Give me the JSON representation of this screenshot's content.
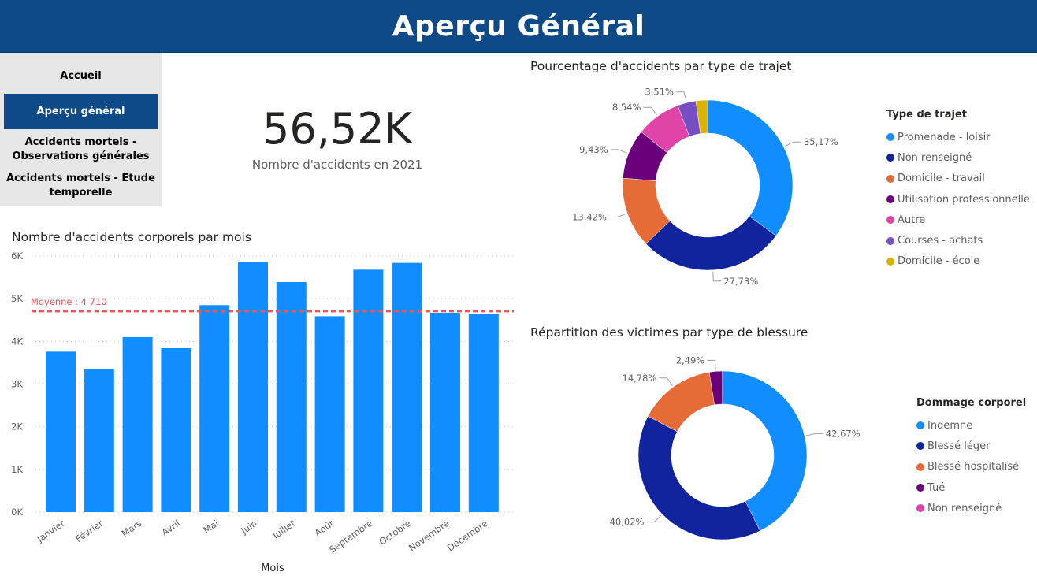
{
  "header": {
    "title": "Aperçu Général"
  },
  "nav": {
    "items": [
      {
        "label": "Accueil"
      },
      {
        "label": "Aperçu général"
      },
      {
        "label": "Accidents mortels - Observations générales"
      },
      {
        "label": "Accidents mortels - Etude temporelle"
      }
    ]
  },
  "kpi": {
    "value": "56,52K",
    "label": "Nombre d'accidents en 2021"
  },
  "colors": {
    "bar": "#118dff",
    "average_line": "#e8575a",
    "header": "#0d4a87"
  },
  "chart_data": [
    {
      "type": "bar",
      "title": "Nombre d'accidents corporels par mois",
      "xlabel": "Mois",
      "ylabel": "",
      "categories": [
        "Janvier",
        "Février",
        "Mars",
        "Avril",
        "Mai",
        "Juin",
        "Juillet",
        "Août",
        "Septembre",
        "Octobre",
        "Novembre",
        "Décembre"
      ],
      "values": [
        3760,
        3350,
        4100,
        3840,
        4850,
        5870,
        5390,
        4590,
        5680,
        5840,
        4670,
        4650
      ],
      "ylim": [
        0,
        6000
      ],
      "yticks": [
        "0K",
        "1K",
        "2K",
        "3K",
        "4K",
        "5K",
        "6K"
      ],
      "grid": true,
      "reference_line": {
        "label": "Moyenne : 4 710",
        "value": 4710
      }
    },
    {
      "type": "pie",
      "title": "Pourcentage d'accidents par type de trajet",
      "legend_title": "Type de trajet",
      "legend_position": "right",
      "slices": [
        {
          "label": "Promenade - loisir",
          "value": 35.17,
          "display": "35,17%",
          "color": "#118dff"
        },
        {
          "label": "Non renseigné",
          "value": 27.73,
          "display": "27,73%",
          "color": "#12239e"
        },
        {
          "label": "Domicile - travail",
          "value": 13.42,
          "display": "13,42%",
          "color": "#e66c37"
        },
        {
          "label": "Utilisation professionnelle",
          "value": 9.43,
          "display": "9,43%",
          "color": "#6b007b"
        },
        {
          "label": "Autre",
          "value": 8.54,
          "display": "8,54%",
          "color": "#e044a7"
        },
        {
          "label": "Courses - achats",
          "value": 3.51,
          "display": "3,51%",
          "color": "#744ec2"
        },
        {
          "label": "Domicile - école",
          "value": 2.2,
          "display": "",
          "color": "#d9b300"
        }
      ]
    },
    {
      "type": "pie",
      "title": "Répartition des victimes par type de blessure",
      "legend_title": "Dommage corporel",
      "legend_position": "right",
      "slices": [
        {
          "label": "Indemne",
          "value": 42.67,
          "display": "42,67%",
          "color": "#118dff"
        },
        {
          "label": "Blessé léger",
          "value": 40.02,
          "display": "40,02%",
          "color": "#12239e"
        },
        {
          "label": "Blessé hospitalisé",
          "value": 14.78,
          "display": "14,78%",
          "color": "#e66c37"
        },
        {
          "label": "Tué",
          "value": 2.49,
          "display": "2,49%",
          "color": "#6b007b"
        },
        {
          "label": "Non renseigné",
          "value": 0.04,
          "display": "",
          "color": "#e044a7"
        }
      ]
    }
  ]
}
